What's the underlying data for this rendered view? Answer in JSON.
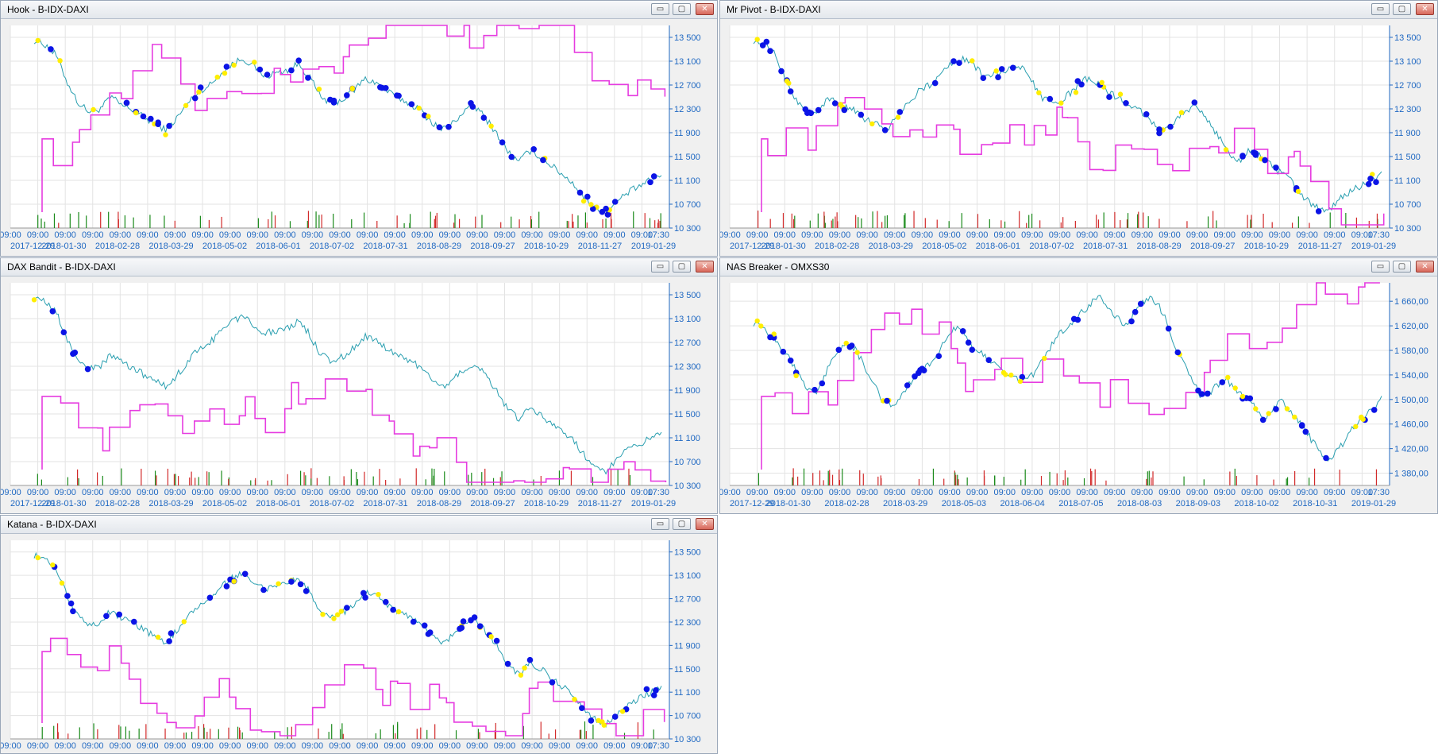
{
  "windows": [
    {
      "title": "Hook - B-IDX-DAXI",
      "ylim": [
        10300,
        13700
      ],
      "yticks": [
        10300,
        10700,
        11100,
        11500,
        11900,
        12300,
        12700,
        13100,
        13500
      ],
      "ytick_labels": [
        "10 300",
        "10 700",
        "11 100",
        "11 500",
        "11 900",
        "12 300",
        "12 700",
        "13 100",
        "13 500"
      ],
      "time_labels": [
        "09:00",
        "09:00",
        "09:00",
        "09:00",
        "09:00",
        "09:00",
        "09:00",
        "09:00",
        "09:00",
        "09:00",
        "09:00",
        "09:00",
        "09:00",
        "09:00",
        "09:00",
        "09:00",
        "09:00",
        "09:00",
        "09:00",
        "09:00",
        "09:00",
        "09:00",
        "09:00",
        "09:00",
        "17:30"
      ],
      "date_labels": [
        "2017-12-29",
        "2018-01-30",
        "2018-02-28",
        "2018-03-29",
        "2018-05-02",
        "2018-06-01",
        "2018-07-02",
        "2018-07-31",
        "2018-08-29",
        "2018-09-27",
        "2018-10-29",
        "2018-11-27",
        "2019-01-29"
      ]
    },
    {
      "title": "Mr Pivot - B-IDX-DAXI",
      "ylim": [
        10300,
        13700
      ],
      "yticks": [
        10300,
        10700,
        11100,
        11500,
        11900,
        12300,
        12700,
        13100,
        13500
      ],
      "ytick_labels": [
        "10 300",
        "10 700",
        "11 100",
        "11 500",
        "11 900",
        "12 300",
        "12 700",
        "13 100",
        "13 500"
      ],
      "time_labels": [
        "09:00",
        "09:00",
        "09:00",
        "09:00",
        "09:00",
        "09:00",
        "09:00",
        "09:00",
        "09:00",
        "09:00",
        "09:00",
        "09:00",
        "09:00",
        "09:00",
        "09:00",
        "09:00",
        "09:00",
        "09:00",
        "09:00",
        "09:00",
        "09:00",
        "09:00",
        "09:00",
        "09:00",
        "17:30"
      ],
      "date_labels": [
        "2017-12-29",
        "2018-01-30",
        "2018-02-28",
        "2018-03-29",
        "2018-05-02",
        "2018-06-01",
        "2018-07-02",
        "2018-07-31",
        "2018-08-29",
        "2018-09-27",
        "2018-10-29",
        "2018-11-27",
        "2019-01-29"
      ]
    },
    {
      "title": "DAX Bandit - B-IDX-DAXI",
      "ylim": [
        10300,
        13700
      ],
      "yticks": [
        10300,
        10700,
        11100,
        11500,
        11900,
        12300,
        12700,
        13100,
        13500
      ],
      "ytick_labels": [
        "10 300",
        "10 700",
        "11 100",
        "11 500",
        "11 900",
        "12 300",
        "12 700",
        "13 100",
        "13 500"
      ],
      "time_labels": [
        "09:00",
        "09:00",
        "09:00",
        "09:00",
        "09:00",
        "09:00",
        "09:00",
        "09:00",
        "09:00",
        "09:00",
        "09:00",
        "09:00",
        "09:00",
        "09:00",
        "09:00",
        "09:00",
        "09:00",
        "09:00",
        "09:00",
        "09:00",
        "09:00",
        "09:00",
        "09:00",
        "09:00",
        "17:30"
      ],
      "date_labels": [
        "2017-12-29",
        "2018-01-30",
        "2018-02-28",
        "2018-03-29",
        "2018-05-02",
        "2018-06-01",
        "2018-07-02",
        "2018-07-31",
        "2018-08-29",
        "2018-09-27",
        "2018-10-29",
        "2018-11-27",
        "2019-01-29"
      ]
    },
    {
      "title": "NAS Breaker - OMXS30",
      "ylim": [
        1360,
        1690
      ],
      "yticks": [
        1380,
        1420,
        1460,
        1500,
        1540,
        1580,
        1620,
        1660
      ],
      "ytick_labels": [
        "1 380,00",
        "1 420,00",
        "1 460,00",
        "1 500,00",
        "1 540,00",
        "1 580,00",
        "1 620,00",
        "1 660,00"
      ],
      "time_labels": [
        "09:00",
        "09:00",
        "09:00",
        "09:00",
        "09:00",
        "09:00",
        "09:00",
        "09:00",
        "09:00",
        "09:00",
        "09:00",
        "09:00",
        "09:00",
        "09:00",
        "09:00",
        "09:00",
        "09:00",
        "09:00",
        "09:00",
        "09:00",
        "09:00",
        "09:00",
        "09:00",
        "09:00",
        "17:30"
      ],
      "date_labels": [
        "2017-12-29",
        "2018-01-30",
        "2018-02-28",
        "2018-03-29",
        "2018-05-03",
        "2018-06-04",
        "2018-07-05",
        "2018-08-03",
        "2018-09-03",
        "2018-10-02",
        "2018-10-31",
        "2019-01-29"
      ]
    },
    {
      "title": "Katana - B-IDX-DAXI",
      "ylim": [
        10300,
        13700
      ],
      "yticks": [
        10300,
        10700,
        11100,
        11500,
        11900,
        12300,
        12700,
        13100,
        13500
      ],
      "ytick_labels": [
        "10 300",
        "10 700",
        "11 100",
        "11 500",
        "11 900",
        "12 300",
        "12 700",
        "13 100",
        "13 500"
      ],
      "time_labels": [
        "09:00",
        "09:00",
        "09:00",
        "09:00",
        "09:00",
        "09:00",
        "09:00",
        "09:00",
        "09:00",
        "09:00",
        "09:00",
        "09:00",
        "09:00",
        "09:00",
        "09:00",
        "09:00",
        "09:00",
        "09:00",
        "09:00",
        "09:00",
        "09:00",
        "09:00",
        "09:00",
        "09:00",
        "17:30"
      ],
      "date_labels": []
    }
  ],
  "buttons": {
    "minimize": "▭",
    "maximize": "▢",
    "close": "✕"
  },
  "colors": {
    "price_line": "#2a9fb0",
    "equity_line": "#e63ce0",
    "marker_blue": "#0b14e6",
    "marker_yellow": "#ffee00",
    "volume_green": "#1a8a1a",
    "volume_red": "#d22a2a",
    "axis_text": "#1f68c2",
    "grid": "#e3e3e3"
  },
  "chart_data": [
    {
      "type": "line",
      "title": "Hook - B-IDX-DAXI",
      "ylim": [
        10300,
        13700
      ],
      "series": [
        {
          "name": "",
          "values": [
            13450,
            13380,
            13200,
            12750,
            12400,
            12250,
            12300,
            12500,
            12350,
            12280,
            12150,
            12050,
            11950,
            12150,
            12400,
            12600,
            12700,
            12900,
            13050,
            13150,
            13000,
            12850,
            12900,
            12950,
            13050,
            12850,
            12500,
            12400,
            12450,
            12600,
            12800,
            12750,
            12600,
            12500,
            12400,
            12300,
            12100,
            11950,
            12050,
            12250,
            12350,
            12150,
            11900,
            11600,
            11400,
            11600,
            11500,
            11350,
            11200,
            11050,
            10800,
            10650,
            10550,
            10750,
            10900,
            11000,
            11100,
            11200
          ]
        }
      ]
    },
    {
      "type": "line",
      "title": "Mr Pivot - B-IDX-DAXI",
      "ylim": [
        10300,
        13700
      ],
      "series": [
        {
          "name": "",
          "values": [
            13450,
            13380,
            13200,
            12750,
            12400,
            12250,
            12300,
            12500,
            12350,
            12280,
            12150,
            12050,
            11950,
            12150,
            12400,
            12600,
            12700,
            12900,
            13050,
            13150,
            13000,
            12850,
            12900,
            12950,
            13050,
            12850,
            12500,
            12400,
            12450,
            12600,
            12800,
            12750,
            12600,
            12500,
            12400,
            12300,
            12100,
            11950,
            12050,
            12250,
            12350,
            12150,
            11900,
            11600,
            11400,
            11600,
            11500,
            11350,
            11200,
            11050,
            10800,
            10650,
            10550,
            10750,
            10900,
            11000,
            11100,
            11200
          ]
        }
      ]
    },
    {
      "type": "line",
      "title": "DAX Bandit - B-IDX-DAXI",
      "ylim": [
        10300,
        13700
      ],
      "series": [
        {
          "name": "",
          "values": [
            13450,
            13380,
            13200,
            12750,
            12400,
            12250,
            12300,
            12500,
            12350,
            12280,
            12150,
            12050,
            11950,
            12150,
            12400,
            12600,
            12700,
            12900,
            13050,
            13150,
            13000,
            12850,
            12900,
            12950,
            13050,
            12850,
            12500,
            12400,
            12450,
            12600,
            12800,
            12750,
            12600,
            12500,
            12400,
            12300,
            12100,
            11950,
            12050,
            12250,
            12350,
            12150,
            11900,
            11600,
            11400,
            11600,
            11500,
            11350,
            11200,
            11050,
            10800,
            10650,
            10550,
            10750,
            10900,
            11000,
            11100,
            11200
          ]
        }
      ]
    },
    {
      "type": "line",
      "title": "NAS Breaker - OMXS30",
      "ylim": [
        1360,
        1690
      ],
      "series": [
        {
          "name": "",
          "values": [
            1625,
            1610,
            1590,
            1560,
            1520,
            1510,
            1560,
            1590,
            1580,
            1540,
            1500,
            1490,
            1520,
            1545,
            1560,
            1600,
            1620,
            1590,
            1570,
            1560,
            1540,
            1530,
            1545,
            1580,
            1610,
            1630,
            1650,
            1670,
            1640,
            1620,
            1650,
            1670,
            1640,
            1580,
            1540,
            1500,
            1520,
            1530,
            1510,
            1490,
            1470,
            1500,
            1480,
            1450,
            1420,
            1400,
            1430,
            1460,
            1480,
            1500
          ]
        }
      ]
    },
    {
      "type": "line",
      "title": "Katana - B-IDX-DAXI",
      "ylim": [
        10300,
        13700
      ],
      "series": [
        {
          "name": "",
          "values": [
            13450,
            13380,
            13200,
            12750,
            12400,
            12250,
            12300,
            12500,
            12350,
            12280,
            12150,
            12050,
            11950,
            12150,
            12400,
            12600,
            12700,
            12900,
            13050,
            13150,
            13000,
            12850,
            12900,
            12950,
            13050,
            12850,
            12500,
            12400,
            12450,
            12600,
            12800,
            12750,
            12600,
            12500,
            12400,
            12300,
            12100,
            11950,
            12050,
            12250,
            12350,
            12150,
            11900,
            11600,
            11400,
            11600,
            11500,
            11350,
            11200,
            11050,
            10800,
            10650,
            10550,
            10750,
            10900,
            11000,
            11100,
            11200
          ]
        }
      ]
    }
  ]
}
